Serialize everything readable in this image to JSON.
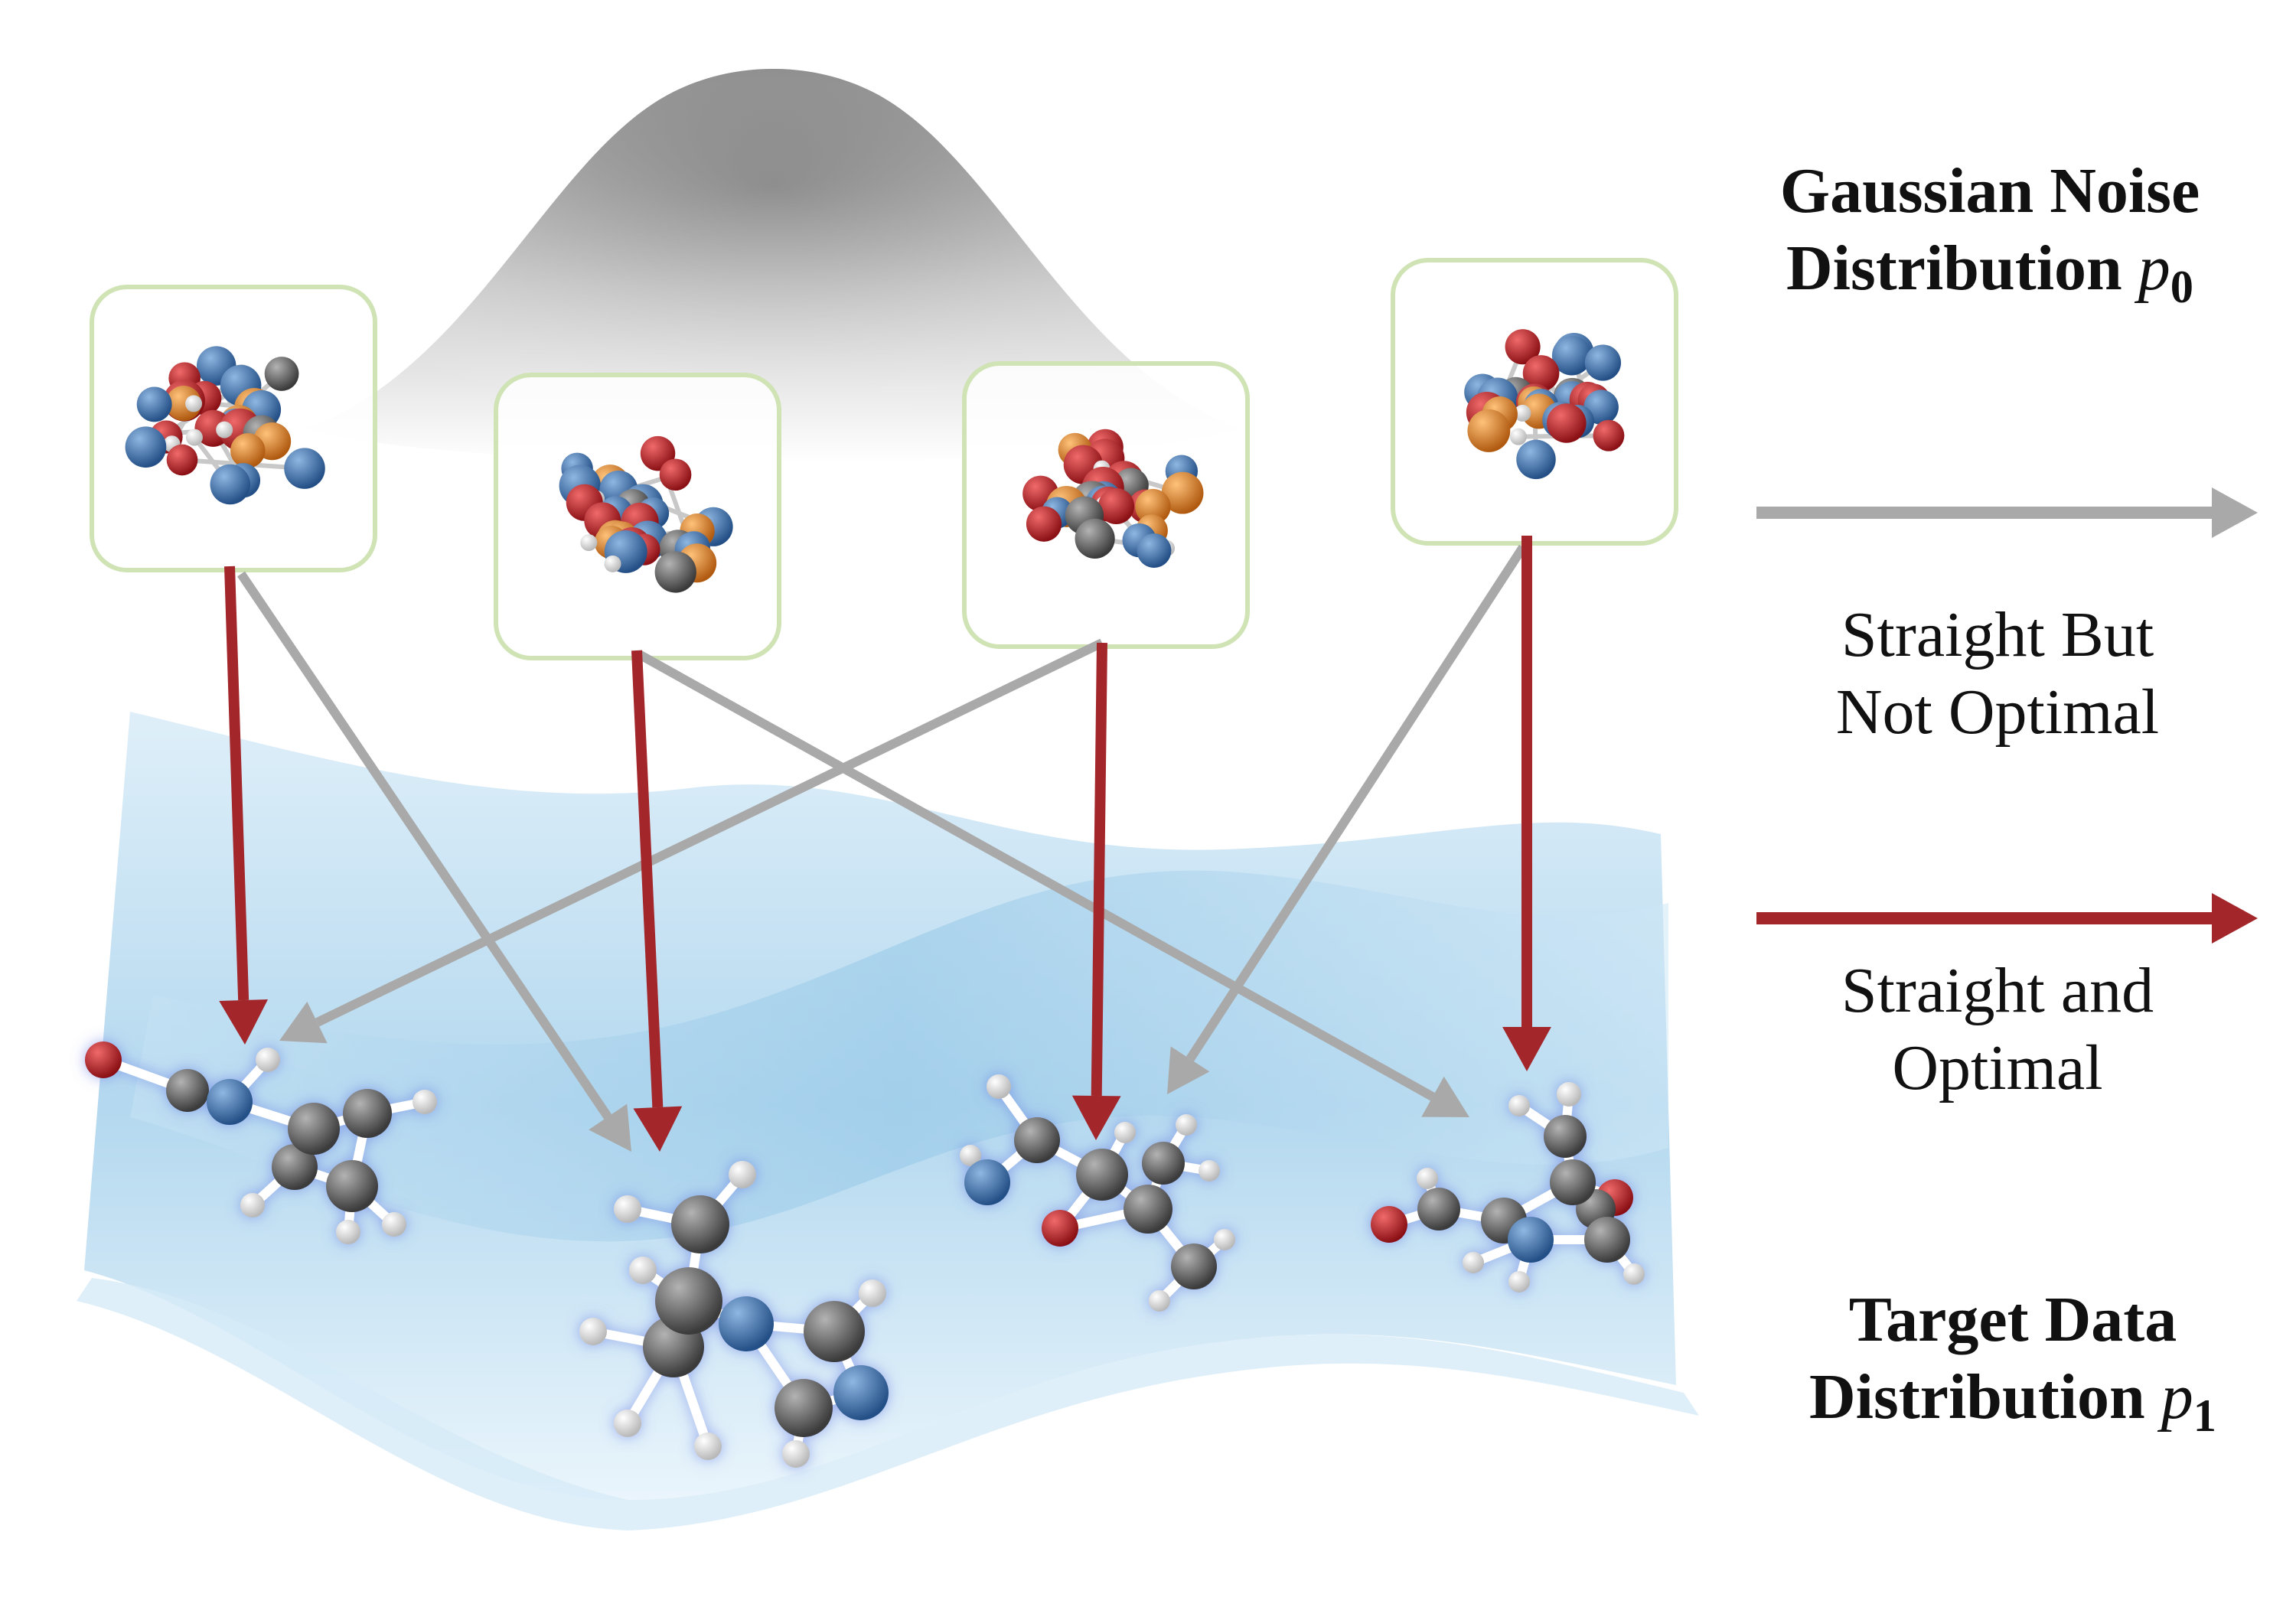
{
  "labels": {
    "gaussian": {
      "line1": "Gaussian Noise",
      "line2": "Distribution",
      "symbol": "p",
      "subscript": "0"
    },
    "target": {
      "line1": "Target Data",
      "line2": "Distribution",
      "symbol": "p",
      "subscript": "1"
    }
  },
  "legend": {
    "gray": {
      "line1": "Straight But",
      "line2": "Not Optimal"
    },
    "red": {
      "line1": "Straight and",
      "line2": "Optimal"
    }
  },
  "colors": {
    "gray_arrow": "#a9a9a9",
    "red_arrow": "#a3262b",
    "box_border": "#cfe3b5",
    "noise_surface": "#7a7a7a",
    "data_surface": "#a9d3ec",
    "carbon": "#5a5a5a",
    "nitrogen": "#3a6ea8",
    "oxygen": "#b82025",
    "hydrogen": "#f2f2f2",
    "phosphorus": "#e08a2a"
  },
  "noise_samples": [
    {
      "name": "noise-sample-1"
    },
    {
      "name": "noise-sample-2"
    },
    {
      "name": "noise-sample-3"
    },
    {
      "name": "noise-sample-4"
    }
  ],
  "target_molecules": [
    {
      "name": "target-molecule-1"
    },
    {
      "name": "target-molecule-2"
    },
    {
      "name": "target-molecule-3"
    },
    {
      "name": "target-molecule-4"
    }
  ]
}
